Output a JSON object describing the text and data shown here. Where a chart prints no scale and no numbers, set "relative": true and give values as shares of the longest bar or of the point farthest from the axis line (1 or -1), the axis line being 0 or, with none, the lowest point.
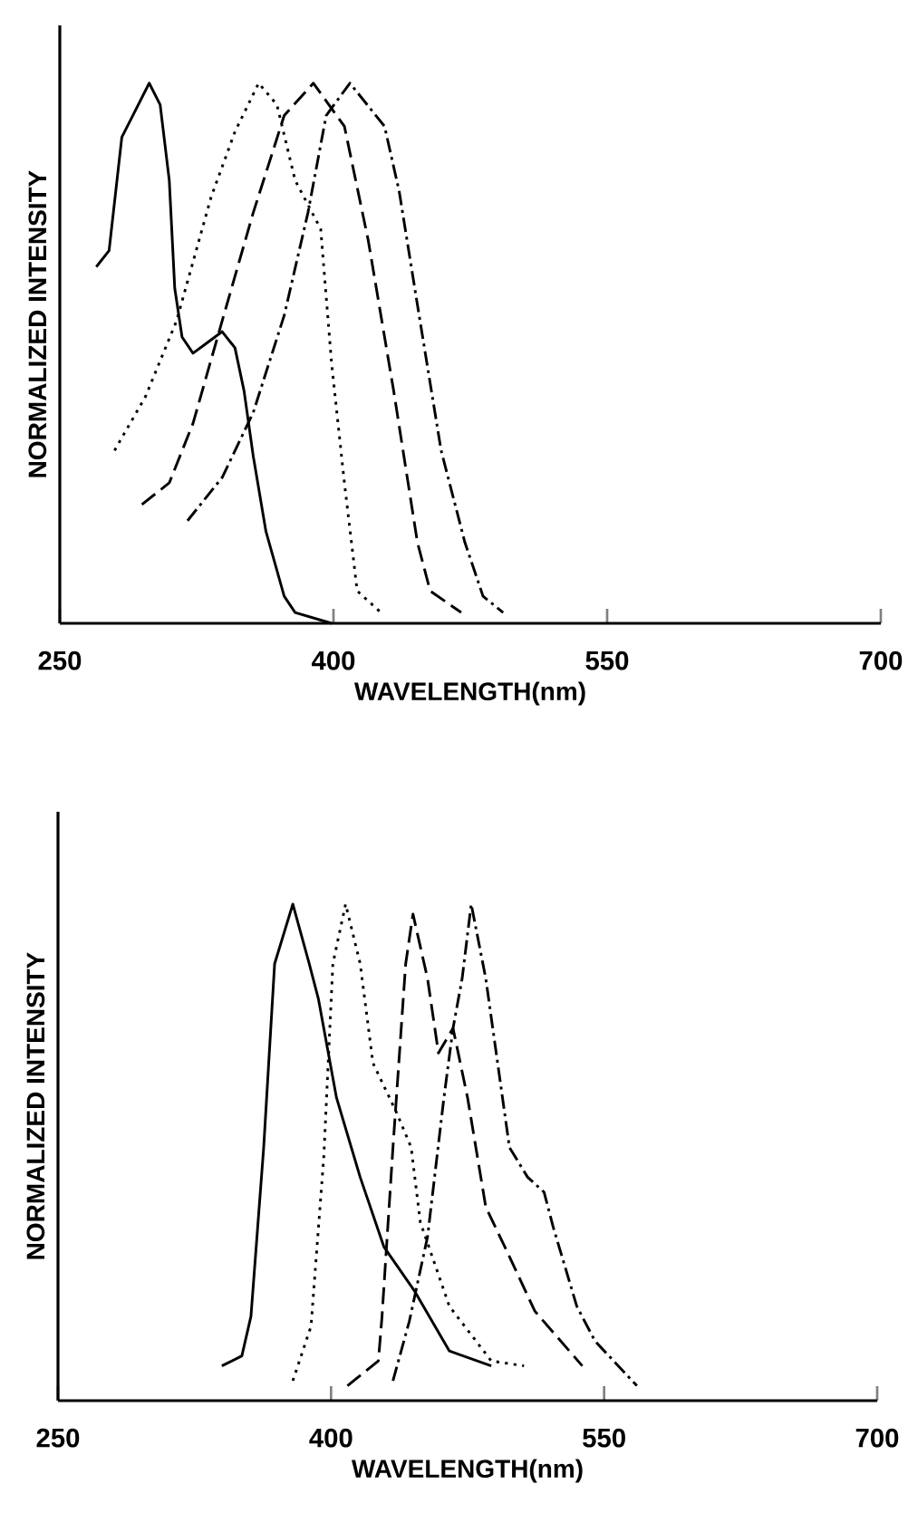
{
  "chart_data": [
    {
      "type": "line",
      "relative": true,
      "xlabel": "WAVELENGTH(nm)",
      "ylabel": "NORMALIZED INTENSITY",
      "xlim": [
        250,
        700
      ],
      "xticks": [
        250,
        400,
        550,
        700
      ],
      "series": [
        {
          "color": "#000000",
          "line_style": "solid",
          "x": [
            270,
            277,
            284,
            290,
            299,
            305,
            310,
            313,
            317,
            323,
            331,
            339,
            346,
            351,
            356,
            363,
            373,
            379,
            399
          ],
          "values": [
            0.66,
            0.69,
            0.9,
            0.94,
            1.0,
            0.96,
            0.82,
            0.62,
            0.53,
            0.5,
            0.52,
            0.54,
            0.51,
            0.43,
            0.31,
            0.17,
            0.05,
            0.02,
            0.0
          ]
        },
        {
          "color": "#000000",
          "line_style": "dotted",
          "x": [
            280,
            297,
            314,
            333,
            346,
            359,
            369,
            379,
            393,
            399,
            406,
            413,
            426
          ],
          "values": [
            0.32,
            0.42,
            0.56,
            0.79,
            0.91,
            1.0,
            0.96,
            0.82,
            0.73,
            0.48,
            0.26,
            0.06,
            0.02
          ]
        },
        {
          "color": "#000000",
          "line_style": "dashed",
          "x": [
            295,
            310,
            323,
            339,
            356,
            373,
            389,
            406,
            419,
            433,
            446,
            453,
            470
          ],
          "values": [
            0.22,
            0.26,
            0.37,
            0.56,
            0.76,
            0.94,
            1.0,
            0.92,
            0.71,
            0.43,
            0.15,
            0.06,
            0.02
          ]
        },
        {
          "color": "#000000",
          "line_style": "dashdot",
          "x": [
            320,
            339,
            356,
            373,
            386,
            396,
            409,
            428,
            436,
            446,
            459,
            472,
            482,
            493
          ],
          "values": [
            0.19,
            0.27,
            0.39,
            0.57,
            0.76,
            0.94,
            1.0,
            0.92,
            0.8,
            0.59,
            0.32,
            0.15,
            0.05,
            0.02
          ]
        }
      ]
    },
    {
      "type": "line",
      "relative": true,
      "xlabel": "WAVELENGTH(nm)",
      "ylabel": "NORMALIZED INTENSITY",
      "xlim": [
        250,
        700
      ],
      "xticks": [
        250,
        400,
        550,
        700
      ],
      "series": [
        {
          "color": "#000000",
          "line_style": "solid",
          "x": [
            340,
            351,
            356,
            363,
            369,
            379,
            388,
            393,
            403,
            416,
            429,
            446,
            465,
            488
          ],
          "values": [
            0.07,
            0.09,
            0.17,
            0.51,
            0.88,
            1.0,
            0.88,
            0.81,
            0.61,
            0.45,
            0.31,
            0.22,
            0.1,
            0.07
          ]
        },
        {
          "color": "#000000",
          "line_style": "dotted",
          "x": [
            379,
            389,
            396,
            401,
            408,
            416,
            423,
            436,
            444,
            449,
            465,
            488,
            506
          ],
          "values": [
            0.04,
            0.15,
            0.49,
            0.88,
            1.0,
            0.88,
            0.68,
            0.58,
            0.51,
            0.36,
            0.19,
            0.08,
            0.07
          ]
        },
        {
          "color": "#000000",
          "line_style": "dashed",
          "x": [
            409,
            426,
            428,
            434,
            441,
            445,
            453,
            459,
            467,
            475,
            485,
            498,
            512,
            538
          ],
          "values": [
            0.03,
            0.08,
            0.17,
            0.51,
            0.88,
            0.98,
            0.85,
            0.7,
            0.75,
            0.61,
            0.39,
            0.29,
            0.18,
            0.07
          ]
        },
        {
          "color": "#000000",
          "line_style": "dashdot",
          "x": [
            434,
            443,
            453,
            462,
            467,
            472,
            477,
            485,
            498,
            508,
            517,
            522,
            535,
            545,
            568
          ],
          "values": [
            0.04,
            0.16,
            0.33,
            0.61,
            0.75,
            0.85,
            1.0,
            0.85,
            0.51,
            0.45,
            0.42,
            0.35,
            0.19,
            0.12,
            0.03
          ]
        }
      ]
    }
  ]
}
